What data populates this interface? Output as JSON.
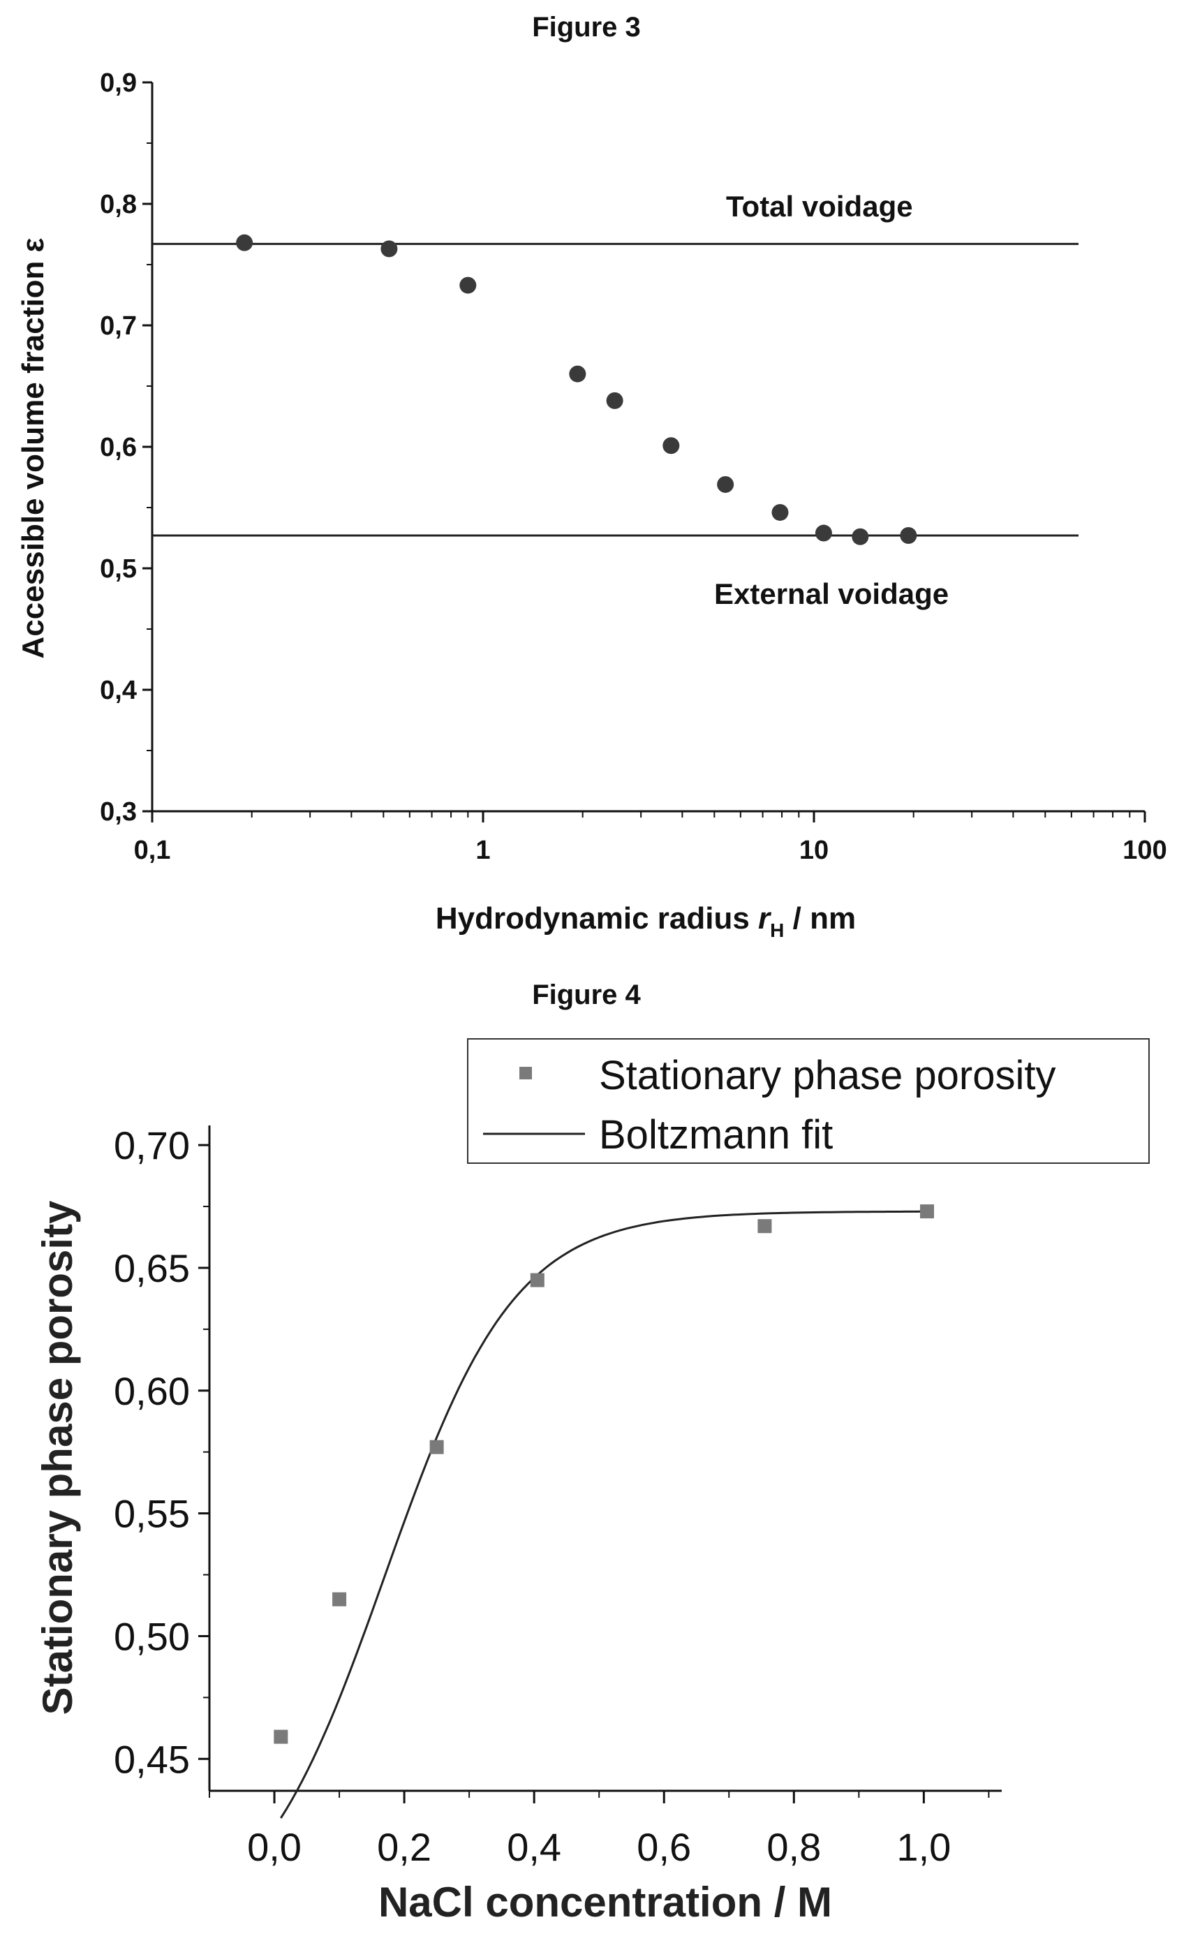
{
  "chart_data": [
    {
      "type": "scatter",
      "title": "Figure 3",
      "xlabel": "Hydrodynamic radius r_H / nm",
      "xlabel_main": "Hydrodynamic radius ",
      "xlabel_var": "r",
      "xlabel_sub": "H",
      "xlabel_unit": " / nm",
      "ylabel": "Accessible volume fraction ε",
      "xscale": "log",
      "xlim": [
        0.1,
        100
      ],
      "ylim": [
        0.3,
        0.9
      ],
      "x_ticks": [
        0.1,
        1,
        10,
        100
      ],
      "x_tick_labels": [
        "0,1",
        "1",
        "10",
        "100"
      ],
      "y_ticks": [
        0.3,
        0.4,
        0.5,
        0.6,
        0.7,
        0.8,
        0.9
      ],
      "y_tick_labels": [
        "0,3",
        "0,4",
        "0,5",
        "0,6",
        "0,7",
        "0,8",
        "0,9"
      ],
      "grid": false,
      "series": [
        {
          "x": [
            0.19,
            0.52,
            0.9,
            1.93,
            2.5,
            3.7,
            5.4,
            7.9,
            10.7,
            13.8,
            19.3
          ],
          "y": [
            0.768,
            0.763,
            0.733,
            0.66,
            0.638,
            0.601,
            0.569,
            0.546,
            0.529,
            0.526,
            0.527
          ]
        }
      ],
      "reference_lines": [
        {
          "label": "Total voidage",
          "y": 0.767
        },
        {
          "label": "External voidage",
          "y": 0.527
        }
      ],
      "colors": {
        "points": "#3a3a3a",
        "lines": "#222222"
      }
    },
    {
      "type": "scatter",
      "title": "Figure 4",
      "xlabel": "NaCl concentration / M",
      "ylabel": "Stationary phase porosity",
      "xlim": [
        -0.1,
        1.12
      ],
      "ylim": [
        0.437,
        0.708
      ],
      "x_ticks": [
        0.0,
        0.2,
        0.4,
        0.6,
        0.8,
        1.0
      ],
      "x_tick_labels": [
        "0,0",
        "0,2",
        "0,4",
        "0,6",
        "0,8",
        "1,0"
      ],
      "y_ticks": [
        0.45,
        0.5,
        0.55,
        0.6,
        0.65,
        0.7
      ],
      "y_tick_labels": [
        "0,45",
        "0,50",
        "0,55",
        "0,60",
        "0,65",
        "0,70"
      ],
      "grid": false,
      "legend_position": "top-right",
      "series": [
        {
          "name": "Stationary phase porosity",
          "x": [
            0.01,
            0.1,
            0.25,
            0.405,
            0.755,
            1.005
          ],
          "y": [
            0.459,
            0.515,
            0.577,
            0.645,
            0.667,
            0.673
          ]
        },
        {
          "name": "Boltzmann fit",
          "fit": {
            "model": "boltzmann",
            "A1": 0.376,
            "A2": 0.673,
            "x0": 0.17,
            "dx": 0.1
          }
        }
      ],
      "colors": {
        "points": "#7a7a7a",
        "line": "#222222"
      }
    }
  ]
}
